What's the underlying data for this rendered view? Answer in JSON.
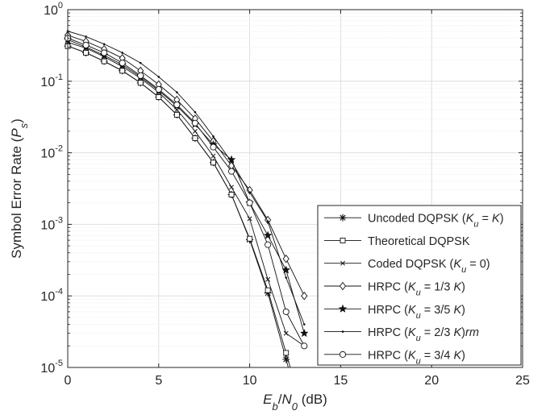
{
  "chart_data": {
    "type": "line",
    "xlabel_parts": [
      {
        "t": "E",
        "style": "italic"
      },
      {
        "t": "b",
        "style": "italic-sub"
      },
      {
        "t": "/",
        "style": "normal"
      },
      {
        "t": "N",
        "style": "italic"
      },
      {
        "t": "0",
        "style": "italic-sub"
      },
      {
        "t": " (dB)",
        "style": "normal"
      }
    ],
    "ylabel_parts": [
      {
        "t": "Symbol Error Rate (",
        "style": "normal"
      },
      {
        "t": "P",
        "style": "italic"
      },
      {
        "t": "s",
        "style": "italic-sub"
      },
      {
        "t": ")",
        "style": "normal"
      }
    ],
    "xlim": [
      0,
      25
    ],
    "ylim": [
      1e-05,
      1
    ],
    "yscale": "log",
    "grid": true,
    "legend_position": "bottom-right",
    "xticks": [
      "0",
      "5",
      "10",
      "15",
      "20",
      "25"
    ],
    "yticks": [
      {
        "base": "10",
        "exp": "0"
      },
      {
        "base": "10",
        "exp": "-1"
      },
      {
        "base": "10",
        "exp": "-2"
      },
      {
        "base": "10",
        "exp": "-3"
      },
      {
        "base": "10",
        "exp": "-4"
      },
      {
        "base": "10",
        "exp": "-5"
      }
    ],
    "series": [
      {
        "name_parts": [
          {
            "t": "Uncoded DQPSK (",
            "style": "normal"
          },
          {
            "t": "K",
            "style": "italic"
          },
          {
            "t": "u",
            "style": "italic-sub"
          },
          {
            "t": " = ",
            "style": "normal"
          },
          {
            "t": "K",
            "style": "italic"
          },
          {
            "t": ")",
            "style": "normal"
          }
        ],
        "marker": "asterisk",
        "x": [
          0,
          1,
          2,
          3,
          4,
          5,
          6,
          7,
          8,
          9,
          10,
          11,
          12
        ],
        "y": [
          0.31,
          0.25,
          0.19,
          0.14,
          0.095,
          0.06,
          0.034,
          0.016,
          0.0073,
          0.0026,
          0.00061,
          0.00011,
          1.3e-05
        ]
      },
      {
        "name_parts": [
          {
            "t": "Theoretical DQPSK",
            "style": "normal"
          }
        ],
        "marker": "square",
        "x": [
          0,
          1,
          2,
          3,
          4,
          5,
          6,
          7,
          8,
          9,
          10,
          11,
          12
        ],
        "y": [
          0.31,
          0.25,
          0.19,
          0.14,
          0.095,
          0.06,
          0.034,
          0.016,
          0.0073,
          0.0026,
          0.00063,
          0.00012,
          1.6e-05
        ]
      },
      {
        "name_parts": [
          {
            "t": "Coded DQPSK (",
            "style": "normal"
          },
          {
            "t": "K",
            "style": "italic"
          },
          {
            "t": "u",
            "style": "italic-sub"
          },
          {
            "t": " = 0)",
            "style": "normal"
          }
        ],
        "marker": "x",
        "x": [
          0,
          1,
          2,
          3,
          4,
          5,
          6,
          7,
          8,
          9,
          10,
          11,
          12,
          13
        ],
        "y": [
          0.35,
          0.29,
          0.22,
          0.16,
          0.11,
          0.07,
          0.04,
          0.02,
          0.009,
          0.0033,
          0.0012,
          0.00017,
          3e-05,
          2e-05
        ]
      },
      {
        "name_parts": [
          {
            "t": "HRPC (",
            "style": "normal"
          },
          {
            "t": "K",
            "style": "italic"
          },
          {
            "t": "u",
            "style": "italic-sub"
          },
          {
            "t": " = 1/3 ",
            "style": "normal"
          },
          {
            "t": "K",
            "style": "italic"
          },
          {
            "t": ")",
            "style": "normal"
          }
        ],
        "marker": "diamond",
        "x": [
          0,
          1,
          2,
          3,
          4,
          5,
          6,
          7,
          8,
          9,
          10,
          11,
          12,
          13
        ],
        "y": [
          0.44,
          0.36,
          0.28,
          0.21,
          0.14,
          0.09,
          0.055,
          0.03,
          0.0145,
          0.0066,
          0.003,
          0.00115,
          0.00033,
          0.0001
        ]
      },
      {
        "name_parts": [
          {
            "t": "HRPC (",
            "style": "normal"
          },
          {
            "t": "K",
            "style": "italic"
          },
          {
            "t": "u",
            "style": "italic-sub"
          },
          {
            "t": " = 3/5 ",
            "style": "normal"
          },
          {
            "t": "K",
            "style": "italic"
          },
          {
            "t": ")",
            "style": "normal"
          }
        ],
        "marker": "star",
        "x": [
          0,
          1,
          2,
          3,
          4,
          5,
          6,
          7,
          8,
          9,
          10,
          11,
          12,
          13
        ],
        "y": [
          0.38,
          0.3,
          0.23,
          0.17,
          0.115,
          0.074,
          0.045,
          0.025,
          0.013,
          0.008,
          0.002,
          0.0007,
          0.00023,
          3e-05
        ]
      },
      {
        "name_parts": [
          {
            "t": "HRPC (",
            "style": "normal"
          },
          {
            "t": "K",
            "style": "italic"
          },
          {
            "t": "u",
            "style": "italic-sub"
          },
          {
            "t": " = 2/3 ",
            "style": "normal"
          },
          {
            "t": "K",
            "style": "italic"
          },
          {
            "t": ")",
            "style": "normal"
          },
          {
            "t": "rm",
            "style": "italic"
          }
        ],
        "marker": "dot",
        "x": [
          0,
          1,
          2,
          3,
          4,
          5,
          6,
          7,
          8,
          9,
          10,
          11,
          12,
          13
        ],
        "y": [
          0.5,
          0.42,
          0.33,
          0.25,
          0.18,
          0.115,
          0.07,
          0.037,
          0.017,
          0.0075,
          0.0028,
          0.0011,
          0.00018,
          4e-05
        ]
      },
      {
        "name_parts": [
          {
            "t": "HRPC (",
            "style": "normal"
          },
          {
            "t": "K",
            "style": "italic"
          },
          {
            "t": "u",
            "style": "italic-sub"
          },
          {
            "t": " = 3/4 ",
            "style": "normal"
          },
          {
            "t": "K",
            "style": "italic"
          },
          {
            "t": ")",
            "style": "normal"
          }
        ],
        "marker": "circle",
        "x": [
          0,
          1,
          2,
          3,
          4,
          5,
          6,
          7,
          8,
          9,
          10,
          11,
          12,
          13
        ],
        "y": [
          0.4,
          0.32,
          0.25,
          0.18,
          0.12,
          0.077,
          0.047,
          0.026,
          0.012,
          0.0055,
          0.002,
          0.00052,
          6e-05,
          2e-05
        ]
      }
    ]
  }
}
